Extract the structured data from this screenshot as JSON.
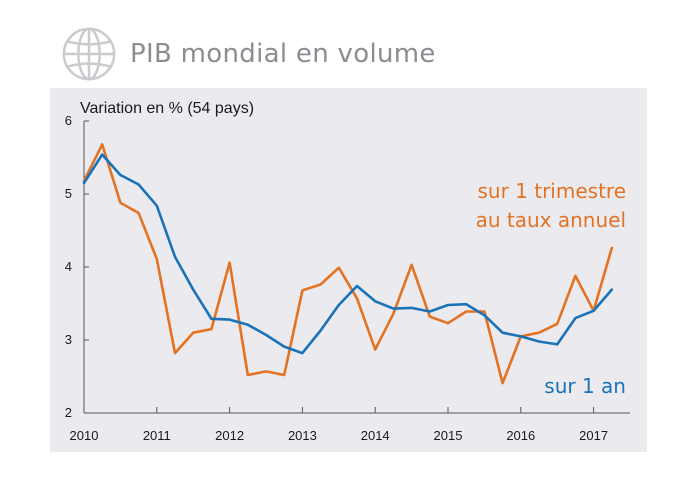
{
  "header": {
    "title": "PIB mondial en volume",
    "icon": "globe-icon"
  },
  "colors": {
    "quarterly": "#e37222",
    "annual": "#1a72b8",
    "panel_bg": "#ebebef",
    "title": "#8a8d91"
  },
  "chart_data": {
    "type": "line",
    "ylabel": "Variation en % (54 pays)",
    "ylim": [
      2,
      6
    ],
    "yticks": [
      "2",
      "3",
      "4",
      "5",
      "6"
    ],
    "xlim": [
      2010,
      2017.5
    ],
    "xticks": [
      "2010",
      "2011",
      "2012",
      "2013",
      "2014",
      "2015",
      "2016",
      "2017"
    ],
    "grid": false,
    "x": [
      2010.0,
      2010.25,
      2010.5,
      2010.75,
      2011.0,
      2011.25,
      2011.5,
      2011.75,
      2012.0,
      2012.25,
      2012.5,
      2012.75,
      2013.0,
      2013.25,
      2013.5,
      2013.75,
      2014.0,
      2014.25,
      2014.5,
      2014.75,
      2015.0,
      2015.25,
      2015.5,
      2015.75,
      2016.0,
      2016.25,
      2016.5,
      2016.75,
      2017.0,
      2017.25
    ],
    "series": [
      {
        "name": "sur 1 trimestre\nau taux annuel",
        "label_lines": [
          "sur 1 trimestre",
          "au taux annuel"
        ],
        "color": "#e37222",
        "values": [
          5.18,
          5.68,
          4.88,
          4.74,
          4.11,
          2.82,
          3.1,
          3.15,
          4.06,
          2.52,
          2.57,
          2.52,
          3.68,
          3.76,
          3.99,
          3.57,
          2.87,
          3.36,
          4.03,
          3.32,
          3.23,
          3.39,
          3.39,
          2.41,
          3.05,
          3.1,
          3.22,
          3.88,
          3.4,
          4.26
        ]
      },
      {
        "name": "sur 1 an",
        "label_lines": [
          "sur 1 an"
        ],
        "color": "#1a72b8",
        "values": [
          5.15,
          5.54,
          5.26,
          5.13,
          4.84,
          4.14,
          3.69,
          3.29,
          3.28,
          3.21,
          3.07,
          2.91,
          2.82,
          3.13,
          3.48,
          3.74,
          3.53,
          3.43,
          3.44,
          3.39,
          3.48,
          3.49,
          3.34,
          3.1,
          3.05,
          2.98,
          2.94,
          3.3,
          3.4,
          3.69
        ]
      }
    ]
  }
}
